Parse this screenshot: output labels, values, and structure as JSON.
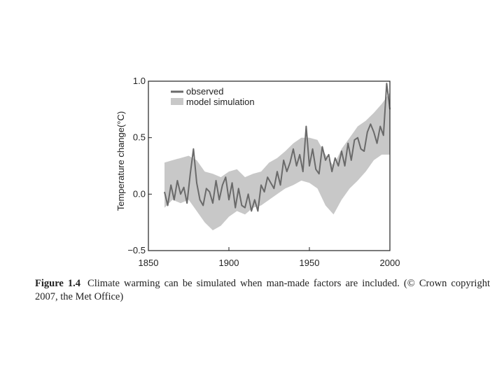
{
  "chart_data": {
    "type": "line",
    "title": "",
    "xlabel": "",
    "ylabel": "Temperature change(°C)",
    "xlim": [
      1850,
      2000
    ],
    "ylim": [
      -0.5,
      1.0
    ],
    "x_ticks": [
      "1850",
      "1900",
      "1950",
      "2000"
    ],
    "y_ticks": [
      "−0.5",
      "0.0",
      "0.5",
      "1.0"
    ],
    "x_tick_values": [
      1850,
      1900,
      1950,
      2000
    ],
    "y_tick_values": [
      -0.5,
      0.0,
      0.5,
      1.0
    ],
    "grid": false,
    "legend_position": "top-left",
    "series": [
      {
        "name": "observed",
        "kind": "line",
        "color": "#6a6a6a",
        "x": [
          1860,
          1862,
          1864,
          1866,
          1868,
          1870,
          1872,
          1874,
          1876,
          1878,
          1880,
          1882,
          1884,
          1886,
          1888,
          1890,
          1892,
          1894,
          1896,
          1898,
          1900,
          1902,
          1904,
          1906,
          1908,
          1910,
          1912,
          1914,
          1916,
          1918,
          1920,
          1922,
          1924,
          1926,
          1928,
          1930,
          1932,
          1934,
          1936,
          1938,
          1940,
          1942,
          1944,
          1946,
          1948,
          1950,
          1952,
          1954,
          1956,
          1958,
          1960,
          1962,
          1964,
          1966,
          1968,
          1970,
          1972,
          1974,
          1976,
          1978,
          1980,
          1982,
          1984,
          1986,
          1988,
          1990,
          1992,
          1994,
          1996,
          1998,
          2000
        ],
        "y": [
          0.02,
          -0.1,
          0.08,
          -0.05,
          0.12,
          0.0,
          0.06,
          -0.08,
          0.18,
          0.4,
          0.1,
          -0.05,
          -0.1,
          0.05,
          0.02,
          -0.08,
          0.12,
          -0.05,
          0.08,
          0.15,
          -0.05,
          0.1,
          -0.12,
          0.05,
          -0.1,
          -0.12,
          0.0,
          -0.15,
          -0.05,
          -0.15,
          0.08,
          0.02,
          0.15,
          0.1,
          0.05,
          0.2,
          0.08,
          0.3,
          0.2,
          0.28,
          0.4,
          0.25,
          0.35,
          0.2,
          0.6,
          0.25,
          0.4,
          0.22,
          0.18,
          0.42,
          0.3,
          0.35,
          0.2,
          0.32,
          0.25,
          0.38,
          0.25,
          0.45,
          0.3,
          0.48,
          0.5,
          0.4,
          0.38,
          0.55,
          0.62,
          0.55,
          0.45,
          0.6,
          0.52,
          0.98,
          0.75
        ]
      },
      {
        "name": "model simulation",
        "kind": "band",
        "color": "#c8c8c8",
        "x": [
          1860,
          1865,
          1870,
          1875,
          1880,
          1885,
          1890,
          1895,
          1900,
          1905,
          1910,
          1915,
          1920,
          1925,
          1930,
          1935,
          1940,
          1945,
          1950,
          1955,
          1960,
          1965,
          1970,
          1975,
          1980,
          1985,
          1990,
          1995,
          2000
        ],
        "lower": [
          -0.12,
          -0.05,
          -0.08,
          -0.05,
          -0.15,
          -0.25,
          -0.32,
          -0.28,
          -0.2,
          -0.15,
          -0.18,
          -0.12,
          -0.1,
          -0.05,
          0.0,
          0.05,
          0.08,
          0.12,
          0.1,
          0.05,
          -0.1,
          -0.18,
          -0.05,
          0.05,
          0.12,
          0.2,
          0.3,
          0.35,
          0.35
        ],
        "upper": [
          0.28,
          0.3,
          0.32,
          0.34,
          0.3,
          0.2,
          0.18,
          0.15,
          0.2,
          0.22,
          0.15,
          0.18,
          0.2,
          0.28,
          0.32,
          0.38,
          0.45,
          0.5,
          0.5,
          0.48,
          0.35,
          0.25,
          0.4,
          0.5,
          0.6,
          0.65,
          0.72,
          0.8,
          0.9
        ]
      }
    ]
  },
  "caption": {
    "label": "Figure 1.4",
    "text": "Climate warming can be simulated when man-made factors are included. (© Crown copyright 2007, the Met Office)"
  }
}
